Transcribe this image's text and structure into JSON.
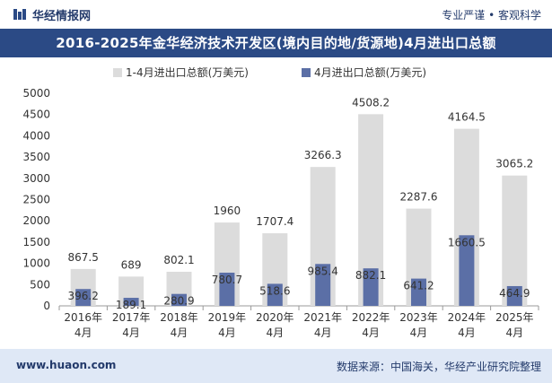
{
  "header": {
    "brand": "华经情报网",
    "slogan": "专业严谨 • 客观科学"
  },
  "title": "2016-2025年金华经济技术开发区(境内目的地/货源地)4月进出口总额",
  "legend": {
    "series1": "1-4月进出口总额(万美元)",
    "series2": "4月进出口总额(万美元)"
  },
  "footer": {
    "website": "www.huaon.com",
    "source": "数据来源：中国海关，华经产业研究院整理"
  },
  "colors": {
    "series1": "#dcdcdc",
    "series2": "#5b6fa6",
    "title_bg": "#2b4a85",
    "footer_bg": "#dfe8f6"
  },
  "chart_data": {
    "type": "bar",
    "title": "2016-2025年金华经济技术开发区(境内目的地/货源地)4月进出口总额",
    "categories": [
      "2016年\n4月",
      "2017年\n4月",
      "2018年\n4月",
      "2019年\n4月",
      "2020年\n4月",
      "2021年\n4月",
      "2022年\n4月",
      "2023年\n4月",
      "2024年\n4月",
      "2025年\n4月"
    ],
    "series": [
      {
        "name": "1-4月进出口总额(万美元)",
        "values": [
          867.5,
          689,
          802.1,
          1960,
          1707.4,
          3266.3,
          4508.2,
          2287.6,
          4164.5,
          3065.2
        ]
      },
      {
        "name": "4月进出口总额(万美元)",
        "values": [
          396.2,
          189.1,
          280.9,
          780.7,
          518.6,
          985.4,
          882.1,
          641.2,
          1660.5,
          464.9
        ]
      }
    ],
    "ylim": [
      0,
      5000
    ],
    "yticks": [
      0,
      500,
      1000,
      1500,
      2000,
      2500,
      3000,
      3500,
      4000,
      4500,
      5000
    ],
    "legend_position": "top",
    "grid": false
  }
}
